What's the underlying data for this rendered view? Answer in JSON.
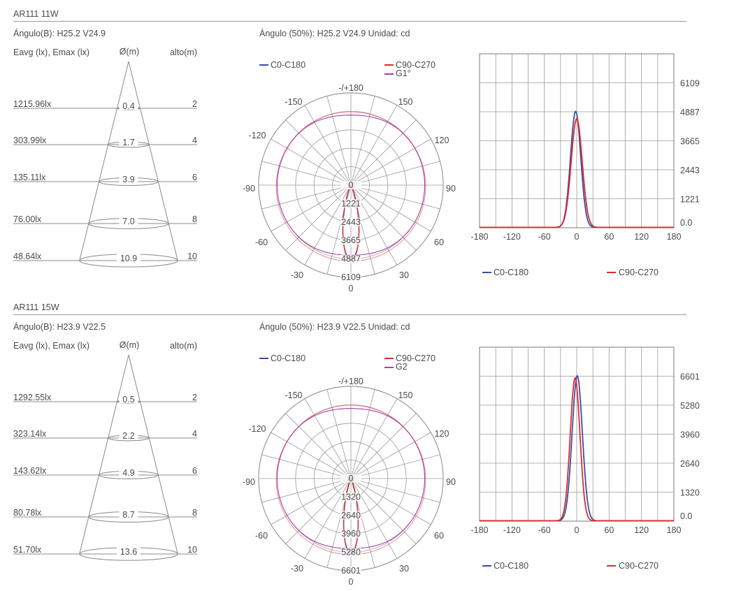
{
  "sections": [
    {
      "title": "AR111 11W",
      "angle_b": "Ángulo(B): H25.2 V24.9",
      "headers": {
        "left": "Eavg (lx), Emax (lx)",
        "diameter": "Ø(m)",
        "height": "alto(m)"
      },
      "cone_rows": [
        {
          "lux": "1215.96lx",
          "diameter": "0.4",
          "height": "2"
        },
        {
          "lux": "303.99lx",
          "diameter": "1.7",
          "height": "4"
        },
        {
          "lux": "135.11lx",
          "diameter": "3.9",
          "height": "6"
        },
        {
          "lux": "76.00lx",
          "diameter": "7.0",
          "height": "8"
        },
        {
          "lux": "48.64lx",
          "diameter": "10.9",
          "height": "10"
        }
      ],
      "polar": {
        "header": "Ángulo (50%): H25.2 V24.9   Unidad: cd",
        "legend": [
          "C0-C180",
          "C90-C270",
          "G1°"
        ],
        "angle_labels": {
          "top": "-/+180",
          "m150": "-150",
          "p150": "150",
          "m120": "-120",
          "p120": "120",
          "m90": "-90",
          "p90": "90",
          "m60": "-60",
          "p60": "60",
          "m30": "-30",
          "p30": "30",
          "bottom": "0"
        },
        "radial_labels": [
          "0",
          "1221",
          "2443",
          "3665",
          "4887",
          "6109"
        ]
      },
      "chart_data": {
        "type": "line",
        "x_ticks": [
          "-180",
          "-120",
          "-60",
          "0",
          "60",
          "120",
          "180"
        ],
        "y_ticks": [
          "0.0",
          "1221",
          "2443",
          "3665",
          "4887",
          "6109"
        ],
        "xlim": [
          -180,
          180
        ],
        "ylim": [
          0,
          7330
        ],
        "legend_placement": "bottom",
        "series": [
          {
            "name": "C0-C180",
            "color": "#3a4ea8",
            "peak": 4887,
            "center": -2,
            "sigma": 9.5
          },
          {
            "name": "C90-C270",
            "color": "#e02b2b",
            "peak": 4580,
            "center": 0,
            "sigma": 10.2
          }
        ]
      }
    },
    {
      "title": "AR111 15W",
      "angle_b": "Ángulo(B): H23.9 V22.5",
      "headers": {
        "left": "Eavg (lx), Emax (lx)",
        "diameter": "Ø(m)",
        "height": "alto(m)"
      },
      "cone_rows": [
        {
          "lux": "1292.55lx",
          "diameter": "0.5",
          "height": "2"
        },
        {
          "lux": "323.14lx",
          "diameter": "2.2",
          "height": "4"
        },
        {
          "lux": "143.62lx",
          "diameter": "4.9",
          "height": "6"
        },
        {
          "lux": "80.78lx",
          "diameter": "8.7",
          "height": "8"
        },
        {
          "lux": "51.70lx",
          "diameter": "13.6",
          "height": "10"
        }
      ],
      "polar": {
        "header": "Ángulo (50%): H23.9 V22.5   Unidad: cd",
        "legend": [
          "C0-C180",
          "C90-C270",
          "G2"
        ],
        "angle_labels": {
          "top": "-/+180",
          "m150": "-150",
          "p150": "150",
          "m120": "-120",
          "p120": "120",
          "m90": "-90",
          "p90": "90",
          "m60": "-60",
          "p60": "60",
          "m30": "-30",
          "p30": "30",
          "bottom": "0"
        },
        "radial_labels": [
          "0",
          "1320",
          "2640",
          "3960",
          "5280",
          "6601"
        ]
      },
      "chart_data": {
        "type": "line",
        "x_ticks": [
          "-180",
          "-120",
          "-60",
          "0",
          "60",
          "120",
          "180"
        ],
        "y_ticks": [
          "0.0",
          "1320",
          "2640",
          "3960",
          "5280",
          "6601"
        ],
        "xlim": [
          -180,
          180
        ],
        "ylim": [
          0,
          7920
        ],
        "legend_placement": "bottom",
        "series": [
          {
            "name": "C0-C180",
            "color": "#3a4ea8",
            "peak": 6601,
            "center": 1,
            "sigma": 9.5
          },
          {
            "name": "C90-C270",
            "color": "#e02b2b",
            "peak": 6500,
            "center": -3,
            "sigma": 9.0
          }
        ]
      }
    }
  ]
}
